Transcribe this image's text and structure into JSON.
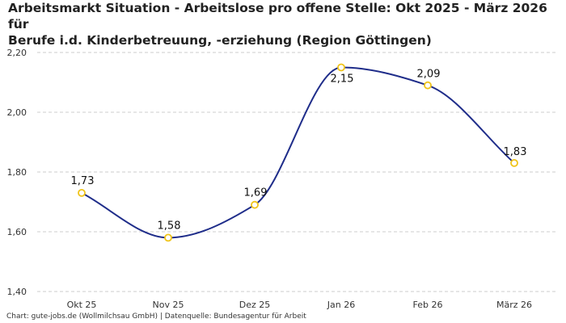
{
  "title": {
    "line1": "Arbeitsmarkt Situation - Arbeitslose pro offene Stelle: Okt 2025 - März 2026 für",
    "line2": "Berufe i.d. Kinderbetreuung, -erziehung (Region Göttingen)"
  },
  "footer": "Chart: gute-jobs.de (Wollmilchsau GmbH) | Datenquelle: Bundesagentur für Arbeit",
  "colors": {
    "line": "#1f2d8a",
    "marker_stroke": "#f0c419",
    "marker_fill": "#ffffff",
    "grid": "#cccccc"
  },
  "chart_data": {
    "type": "line",
    "categories": [
      "Okt 25",
      "Nov 25",
      "Dez 25",
      "Jan 26",
      "Feb 26",
      "März 26"
    ],
    "values": [
      1.73,
      1.58,
      1.69,
      2.15,
      2.09,
      1.83
    ],
    "data_labels": [
      "1,73",
      "1,58",
      "1,69",
      "2,15",
      "2,09",
      "1,83"
    ],
    "yticks": [
      1.4,
      1.6,
      1.8,
      2.0,
      2.2
    ],
    "ytick_labels": [
      "1,40",
      "1,60",
      "1,80",
      "2,00",
      "2,20"
    ],
    "ylim": [
      1.4,
      2.2
    ],
    "grid": true,
    "smooth": true,
    "xlabel": "",
    "ylabel": ""
  }
}
